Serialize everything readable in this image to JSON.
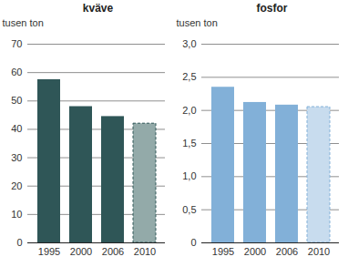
{
  "chart_data": [
    {
      "type": "bar",
      "title": "kväve",
      "y_label": "tusen ton",
      "categories": [
        "1995",
        "2000",
        "2006",
        "2010"
      ],
      "values": [
        57.5,
        48,
        44.5,
        42
      ],
      "colors": [
        "#2f5657",
        "#2f5657",
        "#2f5657",
        "#93aaa9"
      ],
      "ylim": [
        0,
        70
      ],
      "yticks": [
        0,
        10,
        20,
        30,
        40,
        50,
        60,
        70
      ],
      "grid": true
    },
    {
      "type": "bar",
      "title": "fosfor",
      "y_label": "tusen ton",
      "categories": [
        "1995",
        "2000",
        "2006",
        "2010"
      ],
      "values": [
        2.35,
        2.12,
        2.08,
        2.05
      ],
      "colors": [
        "#82b0d8",
        "#82b0d8",
        "#82b0d8",
        "#c8dcee"
      ],
      "ylim": [
        0,
        3.0
      ],
      "yticks": [
        0,
        {
          "value": 0.5,
          "label": "0,5"
        },
        {
          "value": 1,
          "label": "1,0"
        },
        {
          "value": 1.5,
          "label": "1,5"
        },
        {
          "value": 2,
          "label": "2,0"
        },
        {
          "value": 2.5,
          "label": "2,5"
        },
        {
          "value": 3,
          "label": "3,0"
        }
      ],
      "grid": true
    }
  ]
}
